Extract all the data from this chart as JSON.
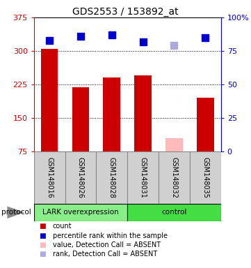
{
  "title": "GDS2553 / 153892_at",
  "samples": [
    "GSM148016",
    "GSM148026",
    "GSM148028",
    "GSM148031",
    "GSM148032",
    "GSM148035"
  ],
  "bar_values": [
    305,
    218,
    240,
    245,
    105,
    195
  ],
  "bar_colors": [
    "#cc0000",
    "#cc0000",
    "#cc0000",
    "#cc0000",
    "#ffbbbb",
    "#cc0000"
  ],
  "rank_values": [
    83,
    86,
    87,
    82,
    79,
    85
  ],
  "rank_colors": [
    "#0000cc",
    "#0000cc",
    "#0000cc",
    "#0000cc",
    "#aaaadd",
    "#0000cc"
  ],
  "ylim_left": [
    75,
    375
  ],
  "ylim_right": [
    0,
    100
  ],
  "yticks_left": [
    75,
    150,
    225,
    300,
    375
  ],
  "yticks_right": [
    0,
    25,
    50,
    75,
    100
  ],
  "ytick_right_labels": [
    "0",
    "25",
    "50",
    "75",
    "100%"
  ],
  "groups": [
    {
      "label": "LARK overexpression",
      "start": 0,
      "end": 3,
      "color": "#88ee88"
    },
    {
      "label": "control",
      "start": 3,
      "end": 6,
      "color": "#44dd44"
    }
  ],
  "protocol_label": "protocol",
  "legend_items": [
    {
      "label": "count",
      "color": "#cc0000"
    },
    {
      "label": "percentile rank within the sample",
      "color": "#0000cc"
    },
    {
      "label": "value, Detection Call = ABSENT",
      "color": "#ffbbbb"
    },
    {
      "label": "rank, Detection Call = ABSENT",
      "color": "#aaaadd"
    }
  ],
  "bar_width": 0.55,
  "rank_marker_size": 7,
  "left_tick_color": "#cc0000",
  "right_tick_color": "#0000cc",
  "title_fontsize": 10,
  "tick_fontsize": 8,
  "sample_label_fontsize": 7,
  "legend_fontsize": 7,
  "proto_fontsize": 7.5,
  "box_bg": "#d0d0d0",
  "box_edge": "#888888"
}
